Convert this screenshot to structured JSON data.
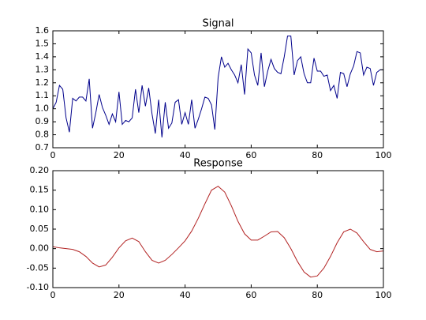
{
  "chart_data": [
    {
      "type": "line",
      "title": "Signal",
      "color": "#00008b",
      "x": [
        0,
        1,
        2,
        3,
        4,
        5,
        6,
        7,
        8,
        9,
        10,
        11,
        12,
        13,
        14,
        15,
        16,
        17,
        18,
        19,
        20,
        21,
        22,
        23,
        24,
        25,
        26,
        27,
        28,
        29,
        30,
        31,
        32,
        33,
        34,
        35,
        36,
        37,
        38,
        39,
        40,
        41,
        42,
        43,
        44,
        45,
        46,
        47,
        48,
        49,
        50,
        51,
        52,
        53,
        54,
        55,
        56,
        57,
        58,
        59,
        60,
        61,
        62,
        63,
        64,
        65,
        66,
        67,
        68,
        69,
        70,
        71,
        72,
        73,
        74,
        75,
        76,
        77,
        78,
        79,
        80,
        81,
        82,
        83,
        84,
        85,
        86,
        87,
        88,
        89,
        90,
        91,
        92,
        93,
        94,
        95,
        96,
        97,
        98,
        99,
        100
      ],
      "values": [
        1.0,
        1.05,
        1.18,
        1.15,
        0.93,
        0.82,
        1.08,
        1.06,
        1.09,
        1.09,
        1.06,
        1.23,
        0.85,
        0.97,
        1.11,
        1.01,
        0.95,
        0.88,
        0.96,
        0.9,
        1.13,
        0.88,
        0.91,
        0.9,
        0.93,
        1.15,
        0.97,
        1.18,
        1.02,
        1.16,
        0.96,
        0.81,
        1.07,
        0.78,
        1.05,
        0.85,
        0.89,
        1.05,
        1.07,
        0.88,
        0.97,
        0.88,
        1.07,
        0.85,
        0.92,
        1.0,
        1.09,
        1.08,
        1.03,
        0.84,
        1.24,
        1.4,
        1.32,
        1.35,
        1.3,
        1.26,
        1.2,
        1.34,
        1.11,
        1.46,
        1.43,
        1.26,
        1.18,
        1.43,
        1.17,
        1.29,
        1.38,
        1.31,
        1.28,
        1.27,
        1.4,
        1.56,
        1.56,
        1.26,
        1.37,
        1.4,
        1.27,
        1.2,
        1.2,
        1.39,
        1.29,
        1.29,
        1.25,
        1.26,
        1.14,
        1.18,
        1.08,
        1.28,
        1.27,
        1.17,
        1.27,
        1.33,
        1.44,
        1.43,
        1.26,
        1.32,
        1.31,
        1.18,
        1.28,
        1.3,
        1.3
      ],
      "xlim": [
        0,
        100
      ],
      "xticks": [
        0,
        20,
        40,
        60,
        80,
        100
      ],
      "ylim": [
        0.7,
        1.6
      ],
      "yticks": [
        {
          "value": 0.7,
          "label": "0.7"
        },
        0.8,
        0.9,
        {
          "value": 1,
          "label": "1.0"
        },
        1.1,
        1.2,
        1.3,
        1.4,
        1.5,
        1.6
      ]
    },
    {
      "type": "line",
      "title": "Response",
      "color": "#b22222",
      "x": [
        0,
        2,
        4,
        6,
        8,
        10,
        12,
        14,
        16,
        18,
        20,
        22,
        24,
        26,
        28,
        30,
        32,
        34,
        36,
        38,
        40,
        42,
        44,
        46,
        48,
        50,
        52,
        54,
        56,
        58,
        60,
        62,
        64,
        66,
        68,
        70,
        72,
        74,
        76,
        78,
        80,
        82,
        84,
        86,
        88,
        90,
        92,
        94,
        96,
        98,
        100
      ],
      "values": [
        0.005,
        0.002,
        0.0,
        -0.002,
        -0.008,
        -0.02,
        -0.037,
        -0.047,
        -0.042,
        -0.022,
        0.002,
        0.02,
        0.027,
        0.018,
        -0.008,
        -0.03,
        -0.037,
        -0.03,
        -0.015,
        0.002,
        0.02,
        0.045,
        0.078,
        0.115,
        0.15,
        0.16,
        0.145,
        0.11,
        0.07,
        0.038,
        0.022,
        0.022,
        0.032,
        0.043,
        0.044,
        0.028,
        0.0,
        -0.033,
        -0.06,
        -0.073,
        -0.07,
        -0.05,
        -0.02,
        0.015,
        0.043,
        0.05,
        0.04,
        0.018,
        -0.002,
        -0.008,
        -0.006
      ],
      "xlim": [
        0,
        100
      ],
      "xticks": [
        0,
        20,
        40,
        60,
        80,
        100
      ],
      "ylim": [
        -0.1,
        0.2
      ],
      "yticks": [
        {
          "value": -0.1,
          "label": "-0.10"
        },
        {
          "value": -0.05,
          "label": "-0.05"
        },
        {
          "value": 0,
          "label": "0.00"
        },
        {
          "value": 0.05,
          "label": "0.05"
        },
        {
          "value": 0.1,
          "label": "0.10"
        },
        {
          "value": 0.15,
          "label": "0.15"
        },
        {
          "value": 0.2,
          "label": "0.20"
        }
      ]
    }
  ]
}
